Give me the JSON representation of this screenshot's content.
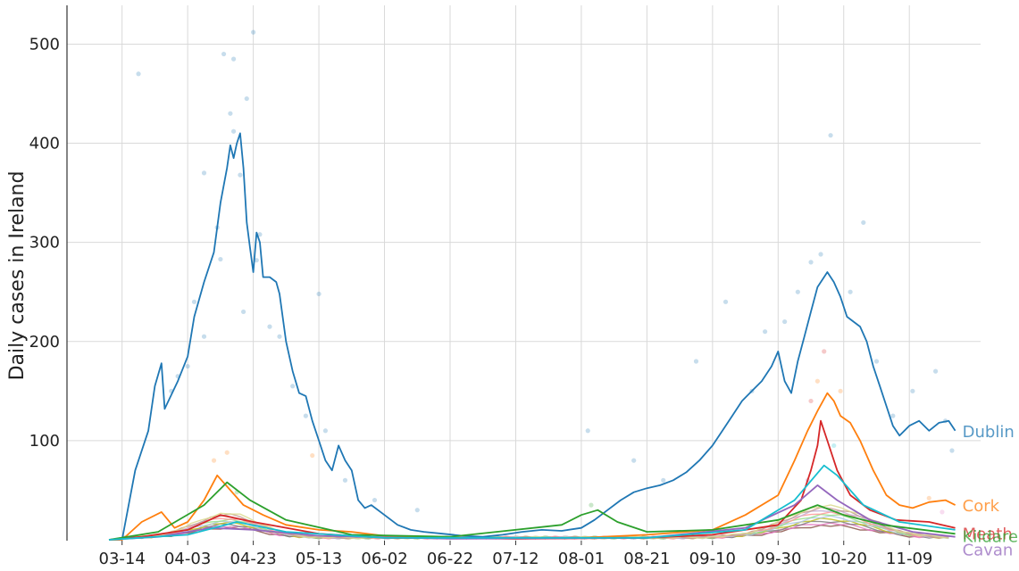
{
  "chart_data": {
    "type": "line",
    "title": "",
    "xlabel": "",
    "ylabel": "Daily cases in Ireland",
    "ylim": [
      0,
      540
    ],
    "xlim": [
      "2020-03-10",
      "2020-11-28"
    ],
    "yticks": [
      100,
      200,
      300,
      400,
      500
    ],
    "xticks": [
      "03-14",
      "04-03",
      "04-23",
      "05-13",
      "06-02",
      "06-22",
      "07-12",
      "08-01",
      "08-21",
      "09-10",
      "09-30",
      "10-20",
      "11-09"
    ],
    "xtick_dates": [
      "2020-03-14",
      "2020-04-03",
      "2020-04-23",
      "2020-05-13",
      "2020-06-02",
      "2020-06-22",
      "2020-07-12",
      "2020-08-01",
      "2020-08-21",
      "2020-09-10",
      "2020-09-30",
      "2020-10-20",
      "2020-11-09"
    ],
    "grid": true,
    "legend": "labels at line ends (right)",
    "series": [
      {
        "name": "Dublin",
        "color": "#1f77b4",
        "points": [
          [
            "2020-03-10",
            0
          ],
          [
            "2020-03-14",
            0
          ],
          [
            "2020-03-18",
            70
          ],
          [
            "2020-03-22",
            110
          ],
          [
            "2020-03-24",
            155
          ],
          [
            "2020-03-26",
            178
          ],
          [
            "2020-03-27",
            132
          ],
          [
            "2020-03-31",
            160
          ],
          [
            "2020-04-03",
            185
          ],
          [
            "2020-04-05",
            225
          ],
          [
            "2020-04-08",
            260
          ],
          [
            "2020-04-11",
            290
          ],
          [
            "2020-04-13",
            340
          ],
          [
            "2020-04-15",
            375
          ],
          [
            "2020-04-16",
            398
          ],
          [
            "2020-04-17",
            385
          ],
          [
            "2020-04-18",
            400
          ],
          [
            "2020-04-19",
            410
          ],
          [
            "2020-04-20",
            375
          ],
          [
            "2020-04-21",
            320
          ],
          [
            "2020-04-22",
            295
          ],
          [
            "2020-04-23",
            270
          ],
          [
            "2020-04-24",
            310
          ],
          [
            "2020-04-25",
            300
          ],
          [
            "2020-04-26",
            265
          ],
          [
            "2020-04-28",
            265
          ],
          [
            "2020-04-30",
            260
          ],
          [
            "2020-05-01",
            248
          ],
          [
            "2020-05-03",
            200
          ],
          [
            "2020-05-05",
            170
          ],
          [
            "2020-05-07",
            148
          ],
          [
            "2020-05-09",
            145
          ],
          [
            "2020-05-11",
            120
          ],
          [
            "2020-05-13",
            100
          ],
          [
            "2020-05-15",
            80
          ],
          [
            "2020-05-17",
            70
          ],
          [
            "2020-05-19",
            95
          ],
          [
            "2020-05-21",
            80
          ],
          [
            "2020-05-23",
            70
          ],
          [
            "2020-05-25",
            40
          ],
          [
            "2020-05-27",
            32
          ],
          [
            "2020-05-29",
            35
          ],
          [
            "2020-06-02",
            25
          ],
          [
            "2020-06-06",
            15
          ],
          [
            "2020-06-10",
            10
          ],
          [
            "2020-06-14",
            8
          ],
          [
            "2020-06-20",
            6
          ],
          [
            "2020-06-26",
            4
          ],
          [
            "2020-07-02",
            3
          ],
          [
            "2020-07-08",
            5
          ],
          [
            "2020-07-14",
            8
          ],
          [
            "2020-07-20",
            10
          ],
          [
            "2020-07-26",
            9
          ],
          [
            "2020-08-01",
            12
          ],
          [
            "2020-08-05",
            20
          ],
          [
            "2020-08-09",
            30
          ],
          [
            "2020-08-13",
            40
          ],
          [
            "2020-08-17",
            48
          ],
          [
            "2020-08-21",
            52
          ],
          [
            "2020-08-25",
            55
          ],
          [
            "2020-08-29",
            60
          ],
          [
            "2020-09-02",
            68
          ],
          [
            "2020-09-06",
            80
          ],
          [
            "2020-09-10",
            95
          ],
          [
            "2020-09-13",
            110
          ],
          [
            "2020-09-16",
            125
          ],
          [
            "2020-09-19",
            140
          ],
          [
            "2020-09-22",
            150
          ],
          [
            "2020-09-25",
            160
          ],
          [
            "2020-09-28",
            175
          ],
          [
            "2020-09-30",
            190
          ],
          [
            "2020-10-02",
            160
          ],
          [
            "2020-10-04",
            148
          ],
          [
            "2020-10-06",
            180
          ],
          [
            "2020-10-08",
            205
          ],
          [
            "2020-10-10",
            230
          ],
          [
            "2020-10-12",
            255
          ],
          [
            "2020-10-14",
            265
          ],
          [
            "2020-10-15",
            270
          ],
          [
            "2020-10-17",
            260
          ],
          [
            "2020-10-19",
            245
          ],
          [
            "2020-10-21",
            225
          ],
          [
            "2020-10-23",
            220
          ],
          [
            "2020-10-25",
            215
          ],
          [
            "2020-10-27",
            200
          ],
          [
            "2020-10-29",
            175
          ],
          [
            "2020-10-31",
            155
          ],
          [
            "2020-11-02",
            135
          ],
          [
            "2020-11-04",
            115
          ],
          [
            "2020-11-06",
            105
          ],
          [
            "2020-11-09",
            115
          ],
          [
            "2020-11-12",
            120
          ],
          [
            "2020-11-15",
            110
          ],
          [
            "2020-11-18",
            118
          ],
          [
            "2020-11-21",
            120
          ],
          [
            "2020-11-23",
            110
          ]
        ]
      },
      {
        "name": "Cork",
        "color": "#ff7f0e",
        "points": [
          [
            "2020-03-10",
            0
          ],
          [
            "2020-03-14",
            0
          ],
          [
            "2020-03-20",
            18
          ],
          [
            "2020-03-26",
            28
          ],
          [
            "2020-03-30",
            12
          ],
          [
            "2020-04-03",
            18
          ],
          [
            "2020-04-08",
            40
          ],
          [
            "2020-04-12",
            65
          ],
          [
            "2020-04-16",
            50
          ],
          [
            "2020-04-20",
            35
          ],
          [
            "2020-04-26",
            25
          ],
          [
            "2020-05-03",
            15
          ],
          [
            "2020-05-13",
            10
          ],
          [
            "2020-05-23",
            8
          ],
          [
            "2020-06-02",
            4
          ],
          [
            "2020-06-22",
            2
          ],
          [
            "2020-07-12",
            1
          ],
          [
            "2020-08-01",
            2
          ],
          [
            "2020-08-21",
            5
          ],
          [
            "2020-09-10",
            10
          ],
          [
            "2020-09-20",
            25
          ],
          [
            "2020-09-30",
            45
          ],
          [
            "2020-10-05",
            80
          ],
          [
            "2020-10-09",
            110
          ],
          [
            "2020-10-12",
            130
          ],
          [
            "2020-10-15",
            148
          ],
          [
            "2020-10-17",
            140
          ],
          [
            "2020-10-19",
            125
          ],
          [
            "2020-10-22",
            118
          ],
          [
            "2020-10-25",
            100
          ],
          [
            "2020-10-29",
            70
          ],
          [
            "2020-11-02",
            45
          ],
          [
            "2020-11-06",
            35
          ],
          [
            "2020-11-10",
            32
          ],
          [
            "2020-11-15",
            38
          ],
          [
            "2020-11-20",
            40
          ],
          [
            "2020-11-23",
            35
          ]
        ]
      },
      {
        "name": "Meath",
        "color": "#d62728",
        "points": [
          [
            "2020-03-10",
            0
          ],
          [
            "2020-03-20",
            3
          ],
          [
            "2020-04-03",
            10
          ],
          [
            "2020-04-13",
            25
          ],
          [
            "2020-04-23",
            18
          ],
          [
            "2020-05-13",
            6
          ],
          [
            "2020-06-02",
            2
          ],
          [
            "2020-07-12",
            1
          ],
          [
            "2020-08-21",
            2
          ],
          [
            "2020-09-10",
            5
          ],
          [
            "2020-09-30",
            15
          ],
          [
            "2020-10-07",
            40
          ],
          [
            "2020-10-10",
            70
          ],
          [
            "2020-10-12",
            95
          ],
          [
            "2020-10-13",
            120
          ],
          [
            "2020-10-15",
            100
          ],
          [
            "2020-10-18",
            70
          ],
          [
            "2020-10-22",
            45
          ],
          [
            "2020-10-28",
            30
          ],
          [
            "2020-11-05",
            20
          ],
          [
            "2020-11-15",
            18
          ],
          [
            "2020-11-23",
            12
          ]
        ]
      },
      {
        "name": "Cavan",
        "color": "#9467bd",
        "points": [
          [
            "2020-03-10",
            0
          ],
          [
            "2020-03-25",
            3
          ],
          [
            "2020-04-10",
            12
          ],
          [
            "2020-04-23",
            10
          ],
          [
            "2020-05-13",
            4
          ],
          [
            "2020-06-22",
            1
          ],
          [
            "2020-08-21",
            2
          ],
          [
            "2020-09-20",
            12
          ],
          [
            "2020-10-05",
            35
          ],
          [
            "2020-10-12",
            55
          ],
          [
            "2020-10-18",
            40
          ],
          [
            "2020-10-28",
            20
          ],
          [
            "2020-11-10",
            8
          ],
          [
            "2020-11-23",
            3
          ]
        ]
      },
      {
        "name": "Kildare",
        "color": "#2ca02c",
        "points": [
          [
            "2020-03-10",
            0
          ],
          [
            "2020-03-25",
            8
          ],
          [
            "2020-04-08",
            35
          ],
          [
            "2020-04-15",
            58
          ],
          [
            "2020-04-22",
            40
          ],
          [
            "2020-05-03",
            20
          ],
          [
            "2020-05-23",
            5
          ],
          [
            "2020-06-22",
            3
          ],
          [
            "2020-07-26",
            15
          ],
          [
            "2020-08-01",
            25
          ],
          [
            "2020-08-06",
            30
          ],
          [
            "2020-08-12",
            18
          ],
          [
            "2020-08-21",
            8
          ],
          [
            "2020-09-10",
            10
          ],
          [
            "2020-09-30",
            20
          ],
          [
            "2020-10-12",
            35
          ],
          [
            "2020-10-20",
            25
          ],
          [
            "2020-11-01",
            15
          ],
          [
            "2020-11-23",
            6
          ]
        ]
      },
      {
        "name": "Louth",
        "color": "#17becf",
        "points": [
          [
            "2020-03-10",
            0
          ],
          [
            "2020-04-03",
            5
          ],
          [
            "2020-04-18",
            18
          ],
          [
            "2020-05-03",
            8
          ],
          [
            "2020-06-02",
            2
          ],
          [
            "2020-08-21",
            2
          ],
          [
            "2020-09-20",
            10
          ],
          [
            "2020-10-05",
            40
          ],
          [
            "2020-10-14",
            75
          ],
          [
            "2020-10-18",
            65
          ],
          [
            "2020-10-26",
            35
          ],
          [
            "2020-11-06",
            18
          ],
          [
            "2020-11-23",
            10
          ]
        ]
      }
    ],
    "scatter_points": [
      [
        "2020-03-19",
        470,
        "#1f77b4"
      ],
      [
        "2020-04-08",
        370,
        "#1f77b4"
      ],
      [
        "2020-04-14",
        490,
        "#1f77b4"
      ],
      [
        "2020-04-17",
        485,
        "#1f77b4"
      ],
      [
        "2020-04-23",
        512,
        "#1f77b4"
      ],
      [
        "2020-04-21",
        445,
        "#1f77b4"
      ],
      [
        "2020-04-16",
        430,
        "#1f77b4"
      ],
      [
        "2020-04-17",
        412,
        "#1f77b4"
      ],
      [
        "2020-04-12",
        315,
        "#1f77b4"
      ],
      [
        "2020-04-13",
        283,
        "#1f77b4"
      ],
      [
        "2020-04-19",
        368,
        "#1f77b4"
      ],
      [
        "2020-04-25",
        308,
        "#1f77b4"
      ],
      [
        "2020-04-24",
        282,
        "#1f77b4"
      ],
      [
        "2020-04-20",
        230,
        "#1f77b4"
      ],
      [
        "2020-04-05",
        240,
        "#1f77b4"
      ],
      [
        "2020-04-08",
        205,
        "#1f77b4"
      ],
      [
        "2020-04-28",
        215,
        "#1f77b4"
      ],
      [
        "2020-05-01",
        205,
        "#1f77b4"
      ],
      [
        "2020-05-13",
        248,
        "#1f77b4"
      ],
      [
        "2020-05-05",
        155,
        "#1f77b4"
      ],
      [
        "2020-03-31",
        165,
        "#1f77b4"
      ],
      [
        "2020-03-29",
        150,
        "#1f77b4"
      ],
      [
        "2020-04-03",
        175,
        "#1f77b4"
      ],
      [
        "2020-05-15",
        110,
        "#1f77b4"
      ],
      [
        "2020-05-09",
        125,
        "#1f77b4"
      ],
      [
        "2020-05-21",
        60,
        "#1f77b4"
      ],
      [
        "2020-05-30",
        40,
        "#1f77b4"
      ],
      [
        "2020-06-12",
        30,
        "#1f77b4"
      ],
      [
        "2020-08-03",
        110,
        "#1f77b4"
      ],
      [
        "2020-08-17",
        80,
        "#1f77b4"
      ],
      [
        "2020-08-26",
        60,
        "#1f77b4"
      ],
      [
        "2020-09-05",
        180,
        "#1f77b4"
      ],
      [
        "2020-09-14",
        240,
        "#1f77b4"
      ],
      [
        "2020-09-22",
        150,
        "#1f77b4"
      ],
      [
        "2020-09-26",
        210,
        "#1f77b4"
      ],
      [
        "2020-10-02",
        220,
        "#1f77b4"
      ],
      [
        "2020-10-06",
        250,
        "#1f77b4"
      ],
      [
        "2020-10-10",
        280,
        "#1f77b4"
      ],
      [
        "2020-10-13",
        288,
        "#1f77b4"
      ],
      [
        "2020-10-16",
        408,
        "#1f77b4"
      ],
      [
        "2020-10-22",
        250,
        "#1f77b4"
      ],
      [
        "2020-10-26",
        320,
        "#1f77b4"
      ],
      [
        "2020-10-30",
        180,
        "#1f77b4"
      ],
      [
        "2020-11-04",
        125,
        "#1f77b4"
      ],
      [
        "2020-11-10",
        150,
        "#1f77b4"
      ],
      [
        "2020-11-17",
        170,
        "#1f77b4"
      ],
      [
        "2020-11-20",
        120,
        "#1f77b4"
      ],
      [
        "2020-11-22",
        90,
        "#1f77b4"
      ],
      [
        "2020-04-11",
        80,
        "#ff7f0e"
      ],
      [
        "2020-04-15",
        88,
        "#ff7f0e"
      ],
      [
        "2020-05-11",
        85,
        "#ff7f0e"
      ],
      [
        "2020-10-12",
        160,
        "#ff7f0e"
      ],
      [
        "2020-10-19",
        150,
        "#ff7f0e"
      ],
      [
        "2020-10-14",
        190,
        "#d62728"
      ],
      [
        "2020-10-10",
        140,
        "#d62728"
      ],
      [
        "2020-10-17",
        95,
        "#17becf"
      ],
      [
        "2020-04-18",
        48,
        "#2ca02c"
      ],
      [
        "2020-08-04",
        35,
        "#2ca02c"
      ],
      [
        "2020-10-09",
        60,
        "#9467bd"
      ],
      [
        "2020-11-15",
        42,
        "#ff7f0e"
      ],
      [
        "2020-11-19",
        28,
        "#e377c2"
      ]
    ]
  }
}
